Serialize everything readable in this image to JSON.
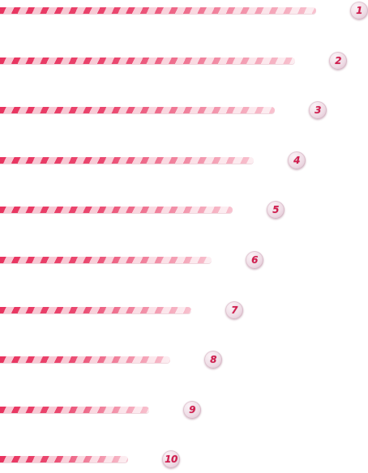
{
  "bars": [
    {
      "label": "1",
      "level": 1.0
    },
    {
      "label": "2",
      "level": 0.934
    },
    {
      "label": "3",
      "level": 0.868
    },
    {
      "label": "4",
      "level": 0.802
    },
    {
      "label": "5",
      "level": 0.736
    },
    {
      "label": "6",
      "level": 0.67
    },
    {
      "label": "7",
      "level": 0.605
    },
    {
      "label": "8",
      "level": 0.538
    },
    {
      "label": "9",
      "level": 0.472
    },
    {
      "label": "10",
      "level": 0.405
    }
  ],
  "colors": {
    "stripe_strong": "#e8335f",
    "stripe_light": "#f7c6d2",
    "stripe_fade": "#fde9ee",
    "badge_text": "#d11d4e"
  }
}
